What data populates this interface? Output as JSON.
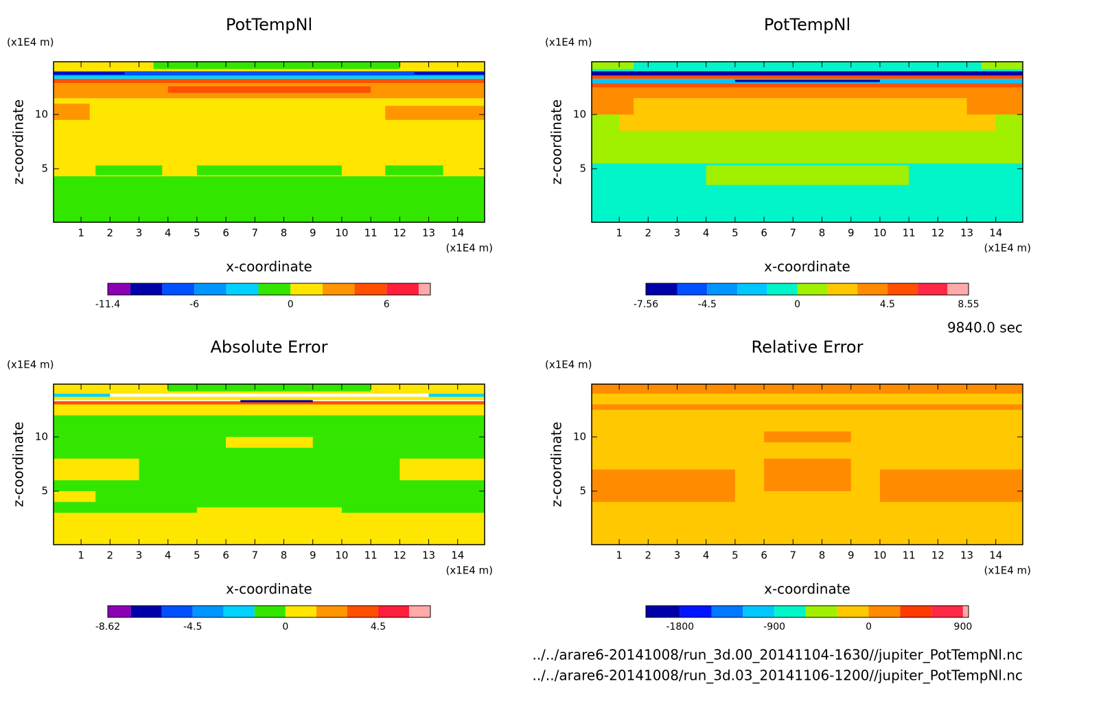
{
  "chart_data": [
    {
      "type": "contour",
      "title": "PotTempNl",
      "xlabel": "x-coordinate",
      "ylabel": "z-coordinate",
      "xunit": "(x1E4 m)",
      "yunit": "(x1E4 m)",
      "xlim": [
        0.05,
        14.93
      ],
      "ylim": [
        0.06,
        14.87
      ],
      "xticks": [
        1,
        2,
        3,
        4,
        5,
        6,
        7,
        8,
        9,
        10,
        11,
        12,
        13,
        14
      ],
      "yticks": [
        5,
        10
      ],
      "colorbar": {
        "levels": [
          -11.4,
          -10,
          -8,
          -6,
          -4,
          -2,
          0,
          2,
          4,
          6,
          8,
          8.73
        ],
        "colors": [
          "#8c00b4",
          "#0000a8",
          "#0050ff",
          "#0096ff",
          "#00d2ff",
          "#32e600",
          "#ffe600",
          "#ff9600",
          "#ff5000",
          "#ff1e3c",
          "#ffaaaa"
        ],
        "ticks": [
          -11.4,
          -6,
          0,
          6
        ]
      }
    },
    {
      "type": "contour",
      "title": "PotTempNl",
      "xlabel": "x-coordinate",
      "ylabel": "z-coordinate",
      "xunit": "(x1E4 m)",
      "yunit": "(x1E4 m)",
      "xlim": [
        0.05,
        14.93
      ],
      "ylim": [
        0.06,
        14.87
      ],
      "xticks": [
        1,
        2,
        3,
        4,
        5,
        6,
        7,
        8,
        9,
        10,
        11,
        12,
        13,
        14
      ],
      "yticks": [
        5,
        10
      ],
      "colorbar": {
        "levels": [
          -7.56,
          -6,
          -4.5,
          -3,
          -1.5,
          0,
          1.5,
          3,
          4.5,
          6,
          7.5,
          8.55
        ],
        "colors": [
          "#0000a8",
          "#0050ff",
          "#0096ff",
          "#00c8ff",
          "#00f5c8",
          "#a0f000",
          "#ffc800",
          "#ff8c00",
          "#ff5000",
          "#ff2846",
          "#ffaaaa"
        ],
        "ticks": [
          -7.56,
          -4.5,
          0,
          4.5,
          8.55
        ]
      }
    },
    {
      "type": "contour",
      "title": "Absolute Error",
      "xlabel": "x-coordinate",
      "ylabel": "z-coordinate",
      "xunit": "(x1E4 m)",
      "yunit": "(x1E4 m)",
      "xlim": [
        0.05,
        14.93
      ],
      "ylim": [
        0.06,
        14.87
      ],
      "xticks": [
        1,
        2,
        3,
        4,
        5,
        6,
        7,
        8,
        9,
        10,
        11,
        12,
        13,
        14
      ],
      "yticks": [
        5,
        10
      ],
      "colorbar": {
        "levels": [
          -8.62,
          -7.5,
          -6,
          -4.5,
          -3,
          -1.5,
          0,
          1.5,
          3,
          4.5,
          6,
          7.03
        ],
        "colors": [
          "#8c00b4",
          "#0000a8",
          "#0050ff",
          "#0096ff",
          "#00d2ff",
          "#32e600",
          "#ffe600",
          "#ff9600",
          "#ff5000",
          "#ff1e3c",
          "#ffaaaa"
        ],
        "ticks": [
          -8.62,
          -4.5,
          0,
          4.5
        ]
      }
    },
    {
      "type": "contour",
      "title": "Relative Error",
      "xlabel": "x-coordinate",
      "ylabel": "z-coordinate",
      "xunit": "(x1E4 m)",
      "yunit": "(x1E4 m)",
      "xlim": [
        0.05,
        14.93
      ],
      "ylim": [
        0.06,
        14.87
      ],
      "xticks": [
        1,
        2,
        3,
        4,
        5,
        6,
        7,
        8,
        9,
        10,
        11,
        12,
        13,
        14
      ],
      "yticks": [
        5,
        10
      ],
      "colorbar": {
        "levels": [
          -2126,
          -1800,
          -1500,
          -1200,
          -900,
          -600,
          -300,
          0,
          300,
          600,
          900,
          953
        ],
        "colors": [
          "#0000a8",
          "#0014ff",
          "#0078ff",
          "#00c8ff",
          "#00f5c8",
          "#a0f000",
          "#ffc800",
          "#ff8c00",
          "#ff3c00",
          "#ff2846",
          "#ffaaaa"
        ],
        "ticks": [
          -1800,
          -900,
          0,
          900
        ]
      }
    }
  ],
  "time_label": "9840.0 sec",
  "files": [
    "../../arare6-20141008/run_3d.00_20141104-1630//jupiter_PotTempNl.nc",
    "../../arare6-20141008/run_3d.03_20141106-1200//jupiter_PotTempNl.nc"
  ]
}
